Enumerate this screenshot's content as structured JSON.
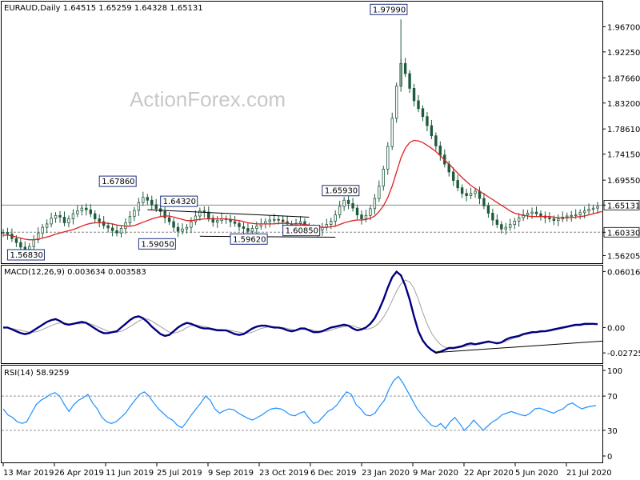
{
  "panels": {
    "price": {
      "header": "EURAUD,Daily  1.64515 1.65259 1.64328 1.65131"
    },
    "macd": {
      "header": "MACD(12,26,9) 0.003634 0.003583"
    },
    "rsi": {
      "header": "RSI(14) 58.9259"
    }
  },
  "watermark": "ActionForex.com",
  "colors": {
    "candles": "#1f5a3d",
    "ma": "#e02020",
    "macd": "#000080",
    "signal": "#a0a0a0",
    "rsi": "#1e90ff",
    "callout_border": "#1f2f7f"
  },
  "chart_data": [
    {
      "type": "candlestick",
      "title": "EURAUD,Daily",
      "ohlc_last": {
        "open": 1.64515,
        "high": 1.65259,
        "low": 1.64328,
        "close": 1.65131
      },
      "x_ticks": [
        "13 Mar 2019",
        "26 Apr 2019",
        "11 Jun 2019",
        "25 Jul 2019",
        "9 Sep 2019",
        "23 Oct 2019",
        "6 Dec 2019",
        "23 Jan 2020",
        "9 Mar 2020",
        "22 Apr 2020",
        "5 Jun 2020",
        "21 Jul 2020"
      ],
      "y_ticks": [
        "1.96700",
        "1.92250",
        "1.87660",
        "1.83200",
        "1.78610",
        "1.74150",
        "1.69550",
        "1.65131",
        "1.60330",
        "1.56205"
      ],
      "ylim": [
        1.5485,
        2.0115
      ],
      "close_series": [
        1.603,
        1.6,
        1.592,
        1.585,
        1.577,
        1.573,
        1.578,
        1.59,
        1.602,
        1.612,
        1.618,
        1.628,
        1.633,
        1.63,
        1.62,
        1.627,
        1.636,
        1.641,
        1.646,
        1.643,
        1.636,
        1.627,
        1.622,
        1.615,
        1.611,
        1.606,
        1.602,
        1.61,
        1.62,
        1.631,
        1.642,
        1.656,
        1.665,
        1.66,
        1.652,
        1.645,
        1.64,
        1.629,
        1.622,
        1.612,
        1.605,
        1.609,
        1.612,
        1.622,
        1.632,
        1.641,
        1.639,
        1.628,
        1.621,
        1.624,
        1.627,
        1.626,
        1.622,
        1.619,
        1.613,
        1.61,
        1.605,
        1.61,
        1.614,
        1.618,
        1.622,
        1.625,
        1.626,
        1.625,
        1.622,
        1.618,
        1.616,
        1.619,
        1.622,
        1.612,
        1.607,
        1.603,
        1.607,
        1.612,
        1.617,
        1.623,
        1.634,
        1.649,
        1.66,
        1.654,
        1.646,
        1.634,
        1.627,
        1.633,
        1.645,
        1.663,
        1.685,
        1.715,
        1.755,
        1.805,
        1.862,
        1.902,
        1.884,
        1.858,
        1.836,
        1.822,
        1.808,
        1.792,
        1.774,
        1.756,
        1.74,
        1.724,
        1.71,
        1.695,
        1.682,
        1.672,
        1.668,
        1.672,
        1.676,
        1.663,
        1.65,
        1.637,
        1.625,
        1.617,
        1.609,
        1.612,
        1.617,
        1.623,
        1.629,
        1.634,
        1.637,
        1.639,
        1.636,
        1.632,
        1.629,
        1.627,
        1.624,
        1.627,
        1.63,
        1.632,
        1.633,
        1.634,
        1.638,
        1.641,
        1.644,
        1.646,
        1.649
      ],
      "ma_series": [
        1.598,
        1.598,
        1.597,
        1.595,
        1.593,
        1.591,
        1.59,
        1.59,
        1.591,
        1.593,
        1.595,
        1.597,
        1.6,
        1.602,
        1.604,
        1.606,
        1.608,
        1.611,
        1.614,
        1.617,
        1.619,
        1.62,
        1.62,
        1.62,
        1.619,
        1.618,
        1.616,
        1.615,
        1.614,
        1.614,
        1.615,
        1.618,
        1.621,
        1.624,
        1.627,
        1.629,
        1.631,
        1.632,
        1.632,
        1.63,
        1.628,
        1.626,
        1.624,
        1.624,
        1.625,
        1.626,
        1.627,
        1.627,
        1.627,
        1.627,
        1.627,
        1.627,
        1.626,
        1.625,
        1.624,
        1.622,
        1.62,
        1.619,
        1.618,
        1.618,
        1.618,
        1.618,
        1.618,
        1.619,
        1.619,
        1.619,
        1.618,
        1.618,
        1.618,
        1.617,
        1.616,
        1.614,
        1.613,
        1.612,
        1.612,
        1.613,
        1.614,
        1.617,
        1.62,
        1.622,
        1.624,
        1.625,
        1.625,
        1.626,
        1.628,
        1.632,
        1.64,
        1.65,
        1.665,
        1.685,
        1.71,
        1.735,
        1.752,
        1.762,
        1.766,
        1.765,
        1.762,
        1.757,
        1.752,
        1.746,
        1.739,
        1.731,
        1.724,
        1.716,
        1.708,
        1.7,
        1.693,
        1.686,
        1.681,
        1.676,
        1.671,
        1.666,
        1.661,
        1.656,
        1.651,
        1.646,
        1.641,
        1.637,
        1.635,
        1.633,
        1.632,
        1.631,
        1.631,
        1.631,
        1.631,
        1.631,
        1.63,
        1.629,
        1.629,
        1.629,
        1.629,
        1.63,
        1.631,
        1.632,
        1.634,
        1.636,
        1.638,
        1.64
      ],
      "callouts": [
        {
          "label": "1.97990",
          "value": 1.9799
        },
        {
          "label": "1.67860",
          "value": 1.6786
        },
        {
          "label": "1.65930",
          "value": 1.6593
        },
        {
          "label": "1.64320",
          "value": 1.6432
        },
        {
          "label": "1.59050",
          "value": 1.5905
        },
        {
          "label": "1.59620",
          "value": 1.5962
        },
        {
          "label": "1.60850",
          "value": 1.6085
        },
        {
          "label": "1.56830",
          "value": 1.5683
        }
      ],
      "reference_lines": [
        {
          "label": "1.65131",
          "value": 1.65131,
          "style": "solid"
        },
        {
          "label": "1.60330",
          "value": 1.6033,
          "style": "dashed"
        }
      ]
    },
    {
      "type": "line",
      "title": "MACD(12,26,9)",
      "current": {
        "macd": 0.003634,
        "signal": 0.003583
      },
      "y_ticks": [
        "0.060165",
        "0.00",
        "-0.02725"
      ],
      "ylim": [
        -0.0383,
        0.0665
      ],
      "macd_series": [
        0.0,
        0.0,
        -0.002,
        -0.004,
        -0.006,
        -0.007,
        -0.006,
        -0.003,
        0.0,
        0.003,
        0.006,
        0.008,
        0.009,
        0.007,
        0.004,
        0.003,
        0.004,
        0.005,
        0.006,
        0.005,
        0.002,
        -0.001,
        -0.004,
        -0.006,
        -0.006,
        -0.005,
        -0.004,
        0.0,
        0.004,
        0.008,
        0.011,
        0.012,
        0.01,
        0.006,
        0.001,
        -0.003,
        -0.007,
        -0.009,
        -0.008,
        -0.004,
        0.0,
        0.003,
        0.005,
        0.004,
        0.002,
        0.0,
        -0.001,
        -0.001,
        -0.002,
        -0.003,
        -0.003,
        -0.003,
        -0.005,
        -0.007,
        -0.008,
        -0.007,
        -0.004,
        -0.001,
        0.001,
        0.002,
        0.002,
        0.001,
        0.0,
        0.0,
        -0.001,
        -0.003,
        -0.004,
        -0.003,
        -0.001,
        -0.001,
        -0.003,
        -0.005,
        -0.005,
        -0.004,
        -0.002,
        0.0,
        0.001,
        0.002,
        0.003,
        0.002,
        -0.001,
        -0.003,
        -0.002,
        0.0,
        0.004,
        0.01,
        0.019,
        0.03,
        0.043,
        0.054,
        0.06,
        0.056,
        0.045,
        0.03,
        0.012,
        -0.004,
        -0.014,
        -0.02,
        -0.024,
        -0.027,
        -0.026,
        -0.024,
        -0.022,
        -0.022,
        -0.021,
        -0.02,
        -0.018,
        -0.017,
        -0.018,
        -0.017,
        -0.016,
        -0.015,
        -0.016,
        -0.017,
        -0.016,
        -0.013,
        -0.011,
        -0.01,
        -0.009,
        -0.007,
        -0.006,
        -0.005,
        -0.005,
        -0.004,
        -0.004,
        -0.003,
        -0.002,
        -0.001,
        0.0,
        0.001,
        0.002,
        0.003,
        0.003,
        0.004,
        0.004,
        0.004,
        0.0036
      ],
      "signal_series": [
        0.0,
        0.0,
        -0.001,
        -0.002,
        -0.003,
        -0.004,
        -0.005,
        -0.005,
        -0.004,
        -0.002,
        0.0,
        0.002,
        0.004,
        0.005,
        0.005,
        0.004,
        0.004,
        0.004,
        0.004,
        0.005,
        0.004,
        0.002,
        0.0,
        -0.002,
        -0.004,
        -0.005,
        -0.005,
        -0.004,
        -0.002,
        0.001,
        0.004,
        0.007,
        0.009,
        0.009,
        0.007,
        0.004,
        0.001,
        -0.002,
        -0.005,
        -0.006,
        -0.005,
        -0.003,
        0.0,
        0.002,
        0.003,
        0.002,
        0.001,
        0.0,
        -0.001,
        -0.002,
        -0.002,
        -0.003,
        -0.003,
        -0.004,
        -0.005,
        -0.006,
        -0.006,
        -0.005,
        -0.003,
        -0.001,
        0.0,
        0.001,
        0.001,
        0.0,
        0.0,
        -0.001,
        -0.002,
        -0.003,
        -0.002,
        -0.002,
        -0.002,
        -0.003,
        -0.004,
        -0.004,
        -0.004,
        -0.003,
        -0.001,
        0.0,
        0.001,
        0.002,
        0.002,
        0.0,
        -0.001,
        -0.002,
        -0.001,
        0.001,
        0.005,
        0.011,
        0.019,
        0.029,
        0.039,
        0.047,
        0.051,
        0.049,
        0.042,
        0.03,
        0.016,
        0.004,
        -0.006,
        -0.013,
        -0.018,
        -0.021,
        -0.022,
        -0.022,
        -0.022,
        -0.021,
        -0.02,
        -0.019,
        -0.018,
        -0.018,
        -0.017,
        -0.016,
        -0.016,
        -0.016,
        -0.016,
        -0.015,
        -0.013,
        -0.011,
        -0.01,
        -0.008,
        -0.007,
        -0.006,
        -0.005,
        -0.005,
        -0.004,
        -0.004,
        -0.003,
        -0.002,
        -0.001,
        0.0,
        0.001,
        0.002,
        0.002,
        0.003,
        0.003,
        0.004,
        0.0036
      ],
      "trendline": {
        "from": -0.0268,
        "to": -0.0146
      }
    },
    {
      "type": "line",
      "title": "RSI(14)",
      "current": 58.9259,
      "y_ticks": [
        "100",
        "70",
        "30",
        "0"
      ],
      "ylim": [
        0,
        100
      ],
      "levels": [
        70,
        30
      ],
      "series": [
        55,
        48,
        45,
        40,
        38,
        40,
        50,
        60,
        65,
        68,
        72,
        74,
        70,
        60,
        52,
        60,
        65,
        68,
        72,
        62,
        55,
        45,
        40,
        38,
        40,
        45,
        50,
        58,
        65,
        72,
        75,
        70,
        62,
        55,
        50,
        45,
        42,
        36,
        33,
        40,
        48,
        55,
        62,
        70,
        65,
        55,
        50,
        53,
        55,
        54,
        50,
        47,
        44,
        42,
        45,
        48,
        52,
        55,
        56,
        55,
        52,
        48,
        47,
        50,
        52,
        44,
        38,
        40,
        46,
        52,
        55,
        60,
        68,
        75,
        72,
        60,
        55,
        48,
        47,
        50,
        58,
        65,
        78,
        88,
        93,
        85,
        75,
        65,
        55,
        48,
        42,
        36,
        34,
        38,
        32,
        40,
        45,
        38,
        30,
        35,
        42,
        36,
        30,
        35,
        40,
        43,
        48,
        50,
        52,
        50,
        48,
        47,
        50,
        55,
        56,
        54,
        52,
        50,
        53,
        55,
        60,
        62,
        58,
        55,
        57,
        58,
        59
      ]
    }
  ]
}
